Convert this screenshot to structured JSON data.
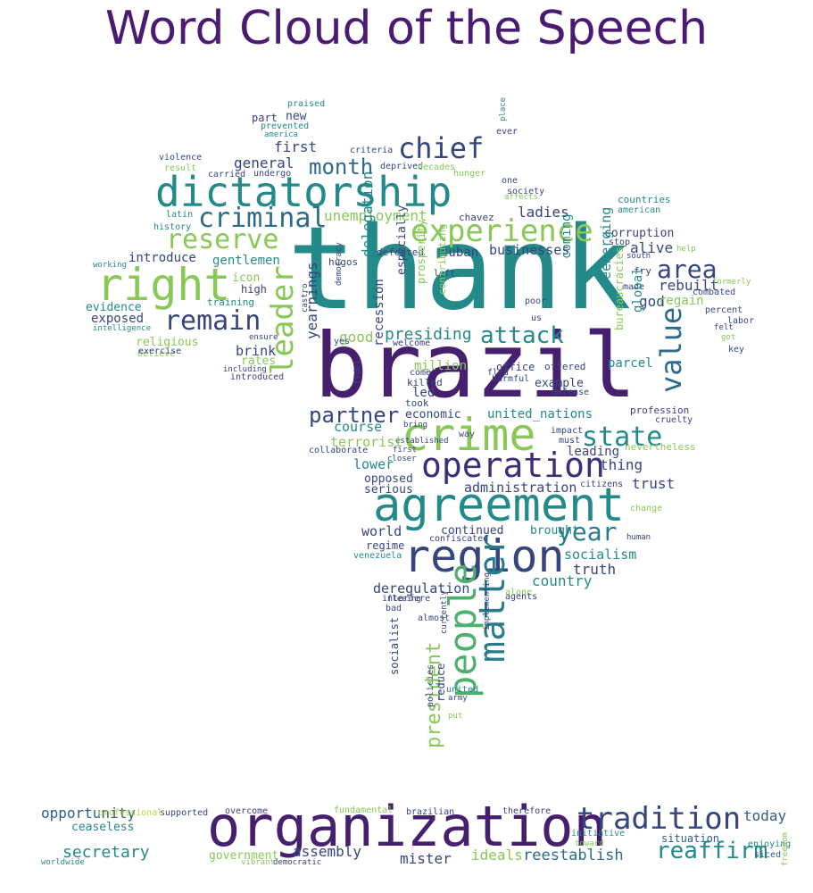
{
  "title": "Word Cloud of the Speech",
  "palette": {
    "dark_purple": "#46206e",
    "purple": "#3b2f7a",
    "indigo": "#37457f",
    "blue": "#2f5d87",
    "steel": "#2b6c8a",
    "teal_blue": "#277b8b",
    "teal": "#238a89",
    "sea": "#2a9a82",
    "green": "#4db06f",
    "lime": "#88c857",
    "yellow_green": "#b7d63f"
  },
  "words": [
    {
      "text": "thank",
      "color": "teal",
      "rot": 0
    },
    {
      "text": "brazil",
      "color": "dark_purple",
      "rot": 0
    },
    {
      "text": "organization",
      "color": "dark_purple",
      "rot": 0
    },
    {
      "text": "agreement",
      "color": "teal",
      "rot": 0
    },
    {
      "text": "dictatorship",
      "color": "teal",
      "rot": 0
    },
    {
      "text": "region",
      "color": "indigo",
      "rot": 0
    },
    {
      "text": "crime",
      "color": "lime",
      "rot": 0
    },
    {
      "text": "right",
      "color": "lime",
      "rot": 0
    },
    {
      "text": "operation",
      "color": "purple",
      "rot": 0
    },
    {
      "text": "tradition",
      "color": "indigo",
      "rot": 0
    },
    {
      "text": "experience",
      "color": "lime",
      "rot": 0
    },
    {
      "text": "people",
      "color": "green",
      "rot": -90
    },
    {
      "text": "matter",
      "color": "teal_blue",
      "rot": -90
    },
    {
      "text": "chief",
      "color": "indigo",
      "rot": 0
    },
    {
      "text": "criminal",
      "color": "steel",
      "rot": 0
    },
    {
      "text": "reserve",
      "color": "lime",
      "rot": 0
    },
    {
      "text": "remain",
      "color": "indigo",
      "rot": 0
    },
    {
      "text": "state",
      "color": "teal",
      "rot": 0
    },
    {
      "text": "value",
      "color": "steel",
      "rot": -90
    },
    {
      "text": "leader",
      "color": "lime",
      "rot": -90
    },
    {
      "text": "attack",
      "color": "teal",
      "rot": 0
    },
    {
      "text": "area",
      "color": "indigo",
      "rot": 0
    },
    {
      "text": "year",
      "color": "teal_blue",
      "rot": 0
    },
    {
      "text": "reaffirm",
      "color": "teal",
      "rot": 0
    },
    {
      "text": "partner",
      "color": "indigo",
      "rot": 0
    },
    {
      "text": "month",
      "color": "steel",
      "rot": 0
    },
    {
      "text": "president",
      "color": "lime",
      "rot": -90
    },
    {
      "text": "secretary",
      "color": "teal",
      "rot": 0
    },
    {
      "text": "opportunity",
      "color": "blue",
      "rot": 0
    },
    {
      "text": "assembly",
      "color": "indigo",
      "rot": 0
    },
    {
      "text": "mister",
      "color": "indigo",
      "rot": 0
    },
    {
      "text": "reestablish",
      "color": "steel",
      "rot": 0
    },
    {
      "text": "ideals",
      "color": "lime",
      "rot": 0
    },
    {
      "text": "government",
      "color": "lime",
      "rot": 0
    },
    {
      "text": "today",
      "color": "blue",
      "rot": 0
    },
    {
      "text": "ceaseless",
      "color": "teal",
      "rot": 0
    },
    {
      "text": "situation",
      "color": "blue",
      "rot": 0
    },
    {
      "text": "fundamental",
      "color": "lime",
      "rot": 0
    },
    {
      "text": "supported",
      "color": "indigo",
      "rot": 0
    },
    {
      "text": "overcome",
      "color": "indigo",
      "rot": 0
    },
    {
      "text": "brazilian",
      "color": "indigo",
      "rot": 0
    },
    {
      "text": "therefore",
      "color": "indigo",
      "rot": 0
    },
    {
      "text": "initiative",
      "color": "teal",
      "rot": 0
    },
    {
      "text": "professional",
      "color": "yellow_green",
      "rot": 0
    },
    {
      "text": "enjoying",
      "color": "teal",
      "rot": 0
    },
    {
      "text": "toward",
      "color": "lime",
      "rot": 0
    },
    {
      "text": "worldwide",
      "color": "teal",
      "rot": 0
    },
    {
      "text": "vibrant",
      "color": "lime",
      "rot": 0
    },
    {
      "text": "democratic",
      "color": "indigo",
      "rot": 0
    },
    {
      "text": "freedom",
      "color": "lime",
      "rot": -90
    },
    {
      "text": "siced",
      "color": "blue",
      "rot": 0
    },
    {
      "text": "general",
      "color": "indigo",
      "rot": 0
    },
    {
      "text": "first",
      "color": "indigo",
      "rot": 0
    },
    {
      "text": "part",
      "color": "indigo",
      "rot": 0
    },
    {
      "text": "new",
      "color": "indigo",
      "rot": 0
    },
    {
      "text": "introduce",
      "color": "indigo",
      "rot": 0
    },
    {
      "text": "gentlemen",
      "color": "teal",
      "rot": 0
    },
    {
      "text": "icon",
      "color": "lime",
      "rot": 0
    },
    {
      "text": "high",
      "color": "indigo",
      "rot": 0
    },
    {
      "text": "training",
      "color": "teal",
      "rot": 0
    },
    {
      "text": "evidence",
      "color": "teal",
      "rot": 0
    },
    {
      "text": "exposed",
      "color": "indigo",
      "rot": 0
    },
    {
      "text": "religious",
      "color": "lime",
      "rot": 0
    },
    {
      "text": "believe",
      "color": "lime",
      "rot": 0
    },
    {
      "text": "brink",
      "color": "indigo",
      "rot": 0
    },
    {
      "text": "rates",
      "color": "lime",
      "rot": 0
    },
    {
      "text": "introduced",
      "color": "indigo",
      "rot": 0
    },
    {
      "text": "exercise",
      "color": "indigo",
      "rot": 0
    },
    {
      "text": "including",
      "color": "indigo",
      "rot": 0
    },
    {
      "text": "intelligence",
      "color": "teal",
      "rot": 0
    },
    {
      "text": "working",
      "color": "teal",
      "rot": 0
    },
    {
      "text": "latin",
      "color": "teal",
      "rot": 0
    },
    {
      "text": "history",
      "color": "teal",
      "rot": 0
    },
    {
      "text": "violence",
      "color": "indigo",
      "rot": 0
    },
    {
      "text": "result",
      "color": "lime",
      "rot": 0
    },
    {
      "text": "carried",
      "color": "indigo",
      "rot": 0
    },
    {
      "text": "undergo",
      "color": "indigo",
      "rot": 0
    },
    {
      "text": "praised",
      "color": "teal",
      "rot": 0
    },
    {
      "text": "prevented",
      "color": "teal",
      "rot": 0
    },
    {
      "text": "america",
      "color": "teal",
      "rot": 0
    },
    {
      "text": "criteria",
      "color": "indigo",
      "rot": 0
    },
    {
      "text": "deprived",
      "color": "indigo",
      "rot": 0
    },
    {
      "text": "decades",
      "color": "lime",
      "rot": 0
    },
    {
      "text": "hunger",
      "color": "lime",
      "rot": 0
    },
    {
      "text": "ever",
      "color": "indigo",
      "rot": 0
    },
    {
      "text": "place",
      "color": "teal",
      "rot": -90
    },
    {
      "text": "one",
      "color": "indigo",
      "rot": 0
    },
    {
      "text": "society",
      "color": "indigo",
      "rot": 0
    },
    {
      "text": "affects",
      "color": "lime",
      "rot": 0
    },
    {
      "text": "countries",
      "color": "teal",
      "rot": 0
    },
    {
      "text": "american",
      "color": "teal",
      "rot": 0
    },
    {
      "text": "unemployment",
      "color": "lime",
      "rot": 0
    },
    {
      "text": "ladies",
      "color": "indigo",
      "rot": 0
    },
    {
      "text": "chavez",
      "color": "indigo",
      "rot": 0
    },
    {
      "text": "hugos",
      "color": "indigo",
      "rot": 0
    },
    {
      "text": "cuban",
      "color": "indigo",
      "rot": 0
    },
    {
      "text": "businesses",
      "color": "indigo",
      "rot": 0
    },
    {
      "text": "defeated",
      "color": "indigo",
      "rot": 0
    },
    {
      "text": "left",
      "color": "indigo",
      "rot": 0
    },
    {
      "text": "corruption",
      "color": "indigo",
      "rot": 0
    },
    {
      "text": "stop",
      "color": "indigo",
      "rot": 0
    },
    {
      "text": "south",
      "color": "indigo",
      "rot": 0
    },
    {
      "text": "help",
      "color": "lime",
      "rot": 0
    },
    {
      "text": "alive",
      "color": "indigo",
      "rot": 0
    },
    {
      "text": "rebuilt",
      "color": "indigo",
      "rot": 0
    },
    {
      "text": "fry",
      "color": "indigo",
      "rot": 0
    },
    {
      "text": "made",
      "color": "indigo",
      "rot": 0
    },
    {
      "text": "combated",
      "color": "indigo",
      "rot": 0
    },
    {
      "text": "formerly",
      "color": "lime",
      "rot": 0
    },
    {
      "text": "god",
      "color": "indigo",
      "rot": 0
    },
    {
      "text": "regain",
      "color": "lime",
      "rot": 0
    },
    {
      "text": "percent",
      "color": "indigo",
      "rot": 0
    },
    {
      "text": "labor",
      "color": "indigo",
      "rot": 0
    },
    {
      "text": "felt",
      "color": "indigo",
      "rot": 0
    },
    {
      "text": "got",
      "color": "lime",
      "rot": 0
    },
    {
      "text": "key",
      "color": "indigo",
      "rot": 0
    },
    {
      "text": "coming",
      "color": "teal",
      "rot": -90
    },
    {
      "text": "poor",
      "color": "indigo",
      "rot": 0
    },
    {
      "text": "democracy",
      "color": "indigo",
      "rot": -90
    },
    {
      "text": "delegation",
      "color": "teal",
      "rot": -90
    },
    {
      "text": "especially",
      "color": "indigo",
      "rot": -90
    },
    {
      "text": "prosperity",
      "color": "lime",
      "rot": -90
    },
    {
      "text": "contributing",
      "color": "lime",
      "rot": -90
    },
    {
      "text": "us",
      "color": "indigo",
      "rot": 0
    },
    {
      "text": "presiding",
      "color": "teal",
      "rot": 0
    },
    {
      "text": "good",
      "color": "lime",
      "rot": 0
    },
    {
      "text": "yes",
      "color": "indigo",
      "rot": 0
    },
    {
      "text": "welcome",
      "color": "indigo",
      "rot": 0
    },
    {
      "text": "ensure",
      "color": "indigo",
      "rot": 0
    },
    {
      "text": "castro",
      "color": "indigo",
      "rot": -90
    },
    {
      "text": "million",
      "color": "lime",
      "rot": 0
    },
    {
      "text": "office",
      "color": "indigo",
      "rot": 0
    },
    {
      "text": "offered",
      "color": "indigo",
      "rot": 0
    },
    {
      "text": "harmful",
      "color": "indigo",
      "rot": 0
    },
    {
      "text": "fled",
      "color": "indigo",
      "rot": 0
    },
    {
      "text": "come",
      "color": "indigo",
      "rot": 0
    },
    {
      "text": "killed",
      "color": "indigo",
      "rot": 0
    },
    {
      "text": "parcel",
      "color": "teal",
      "rot": 0
    },
    {
      "text": "example",
      "color": "indigo",
      "rot": 0
    },
    {
      "text": "defense",
      "color": "indigo",
      "rot": 0
    },
    {
      "text": "reemerging",
      "color": "teal",
      "rot": -90
    },
    {
      "text": "global",
      "color": "teal",
      "rot": -90
    },
    {
      "text": "yearnings",
      "color": "indigo",
      "rot": -90
    },
    {
      "text": "recession",
      "color": "indigo",
      "rot": -90
    },
    {
      "text": "led",
      "color": "indigo",
      "rot": 0
    },
    {
      "text": "took",
      "color": "indigo",
      "rot": 0
    },
    {
      "text": "economic",
      "color": "indigo",
      "rot": 0
    },
    {
      "text": "united_nations",
      "color": "teal",
      "rot": 0
    },
    {
      "text": "bureaucracies",
      "color": "lime",
      "rot": -90
    },
    {
      "text": "profession",
      "color": "indigo",
      "rot": 0
    },
    {
      "text": "cruelty",
      "color": "indigo",
      "rot": 0
    },
    {
      "text": "fidel",
      "color": "indigo",
      "rot": -90
    },
    {
      "text": "bring",
      "color": "indigo",
      "rot": 0
    },
    {
      "text": "established",
      "color": "indigo",
      "rot": 0
    },
    {
      "text": "way",
      "color": "indigo",
      "rot": 0
    },
    {
      "text": "impact",
      "color": "indigo",
      "rot": 0
    },
    {
      "text": "must",
      "color": "indigo",
      "rot": 0
    },
    {
      "text": "course",
      "color": "teal",
      "rot": 0
    },
    {
      "text": "terrorist",
      "color": "lime",
      "rot": 0
    },
    {
      "text": "collaborate",
      "color": "indigo",
      "rot": 0
    },
    {
      "text": "first_small",
      "color": "indigo",
      "rot": 0
    },
    {
      "text": "closer",
      "color": "indigo",
      "rot": 0
    },
    {
      "text": "leading",
      "color": "indigo",
      "rot": 0
    },
    {
      "text": "nevertheless",
      "color": "lime",
      "rot": 0
    },
    {
      "text": "thing",
      "color": "indigo",
      "rot": 0
    },
    {
      "text": "lower",
      "color": "teal",
      "rot": 0
    },
    {
      "text": "opposed",
      "color": "indigo",
      "rot": 0
    },
    {
      "text": "serious",
      "color": "indigo",
      "rot": 0
    },
    {
      "text": "administration",
      "color": "indigo",
      "rot": 0
    },
    {
      "text": "trust",
      "color": "indigo",
      "rot": 0
    },
    {
      "text": "citizens",
      "color": "indigo",
      "rot": 0
    },
    {
      "text": "change",
      "color": "lime",
      "rot": 0
    },
    {
      "text": "world",
      "color": "indigo",
      "rot": 0
    },
    {
      "text": "continued",
      "color": "indigo",
      "rot": 0
    },
    {
      "text": "brought",
      "color": "teal",
      "rot": 0
    },
    {
      "text": "confiscated",
      "color": "indigo",
      "rot": 0
    },
    {
      "text": "regime",
      "color": "indigo",
      "rot": 0
    },
    {
      "text": "venezuela",
      "color": "teal",
      "rot": 0
    },
    {
      "text": "human",
      "color": "indigo",
      "rot": 0
    },
    {
      "text": "socialism",
      "color": "teal",
      "rot": 0
    },
    {
      "text": "truth",
      "color": "indigo",
      "rot": 0
    },
    {
      "text": "country",
      "color": "teal",
      "rot": 0
    },
    {
      "text": "deregulation",
      "color": "indigo",
      "rot": 0
    },
    {
      "text": "interfere",
      "color": "indigo",
      "rot": 0
    },
    {
      "text": "bad",
      "color": "indigo",
      "rot": 0
    },
    {
      "text": "fleeing",
      "color": "indigo",
      "rot": 0
    },
    {
      "text": "alone",
      "color": "lime",
      "rot": 0
    },
    {
      "text": "agents",
      "color": "indigo",
      "rot": 0
    },
    {
      "text": "almost",
      "color": "indigo",
      "rot": 0
    },
    {
      "text": "implementing",
      "color": "indigo",
      "rot": -90
    },
    {
      "text": "currently",
      "color": "indigo",
      "rot": -90
    },
    {
      "text": "united",
      "color": "teal",
      "rot": 0
    },
    {
      "text": "army",
      "color": "indigo",
      "rot": 0
    },
    {
      "text": "socialist",
      "color": "indigo",
      "rot": -90
    },
    {
      "text": "reduce",
      "color": "indigo",
      "rot": -90
    },
    {
      "text": "policies",
      "color": "indigo",
      "rot": -90
    },
    {
      "text": "put",
      "color": "lime",
      "rot": 0
    }
  ]
}
